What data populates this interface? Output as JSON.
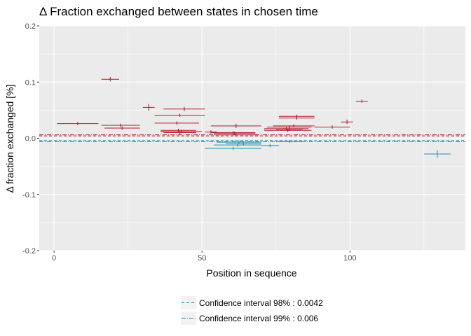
{
  "chart_data": {
    "type": "scatter",
    "title": "Δ Fraction exchanged between states in chosen time",
    "xlabel": "Position in sequence",
    "ylabel": "Δ fraction exchanged [%]",
    "xlim": [
      -5,
      139
    ],
    "ylim": [
      -0.2,
      0.2
    ],
    "x_ticks": [
      0,
      50,
      100
    ],
    "x_tick_labels": [
      "0",
      "50",
      "100"
    ],
    "y_ticks": [
      -0.2,
      -0.1,
      0.0,
      0.1,
      0.2
    ],
    "y_tick_labels": [
      "-0.2",
      "-0.1",
      "0.0",
      "0.1",
      "0.2"
    ],
    "grid": true,
    "colors": {
      "positive": "#b2182b",
      "negative": "#1f8fb4",
      "panel": "#ebebeb",
      "grid": "#ffffff"
    },
    "confidence_intervals": [
      {
        "label": "Confidence interval 98% : 0.0042",
        "value": 0.0042,
        "linetype": "dashed"
      },
      {
        "label": "Confidence interval 99% : 0.006",
        "value": 0.006,
        "linetype": "dotdash"
      }
    ],
    "legend_position": "bottom",
    "points": [
      {
        "start": 1,
        "end": 15,
        "value": 0.026,
        "err": 0.003
      },
      {
        "start": 16,
        "end": 22,
        "value": 0.105,
        "err": 0.004
      },
      {
        "start": 16,
        "end": 29,
        "value": 0.023,
        "err": 0.003
      },
      {
        "start": 17,
        "end": 29,
        "value": 0.018,
        "err": 0.003
      },
      {
        "start": 30,
        "end": 34,
        "value": 0.055,
        "err": 0.006
      },
      {
        "start": 34,
        "end": 51,
        "value": 0.041,
        "err": 0.003
      },
      {
        "start": 37,
        "end": 51,
        "value": 0.052,
        "err": 0.004
      },
      {
        "start": 34,
        "end": 49,
        "value": 0.027,
        "err": 0.003
      },
      {
        "start": 36,
        "end": 48,
        "value": 0.014,
        "err": 0.003
      },
      {
        "start": 37,
        "end": 48,
        "value": 0.01,
        "err": 0.003
      },
      {
        "start": 36,
        "end": 50,
        "value": 0.012,
        "err": 0.003
      },
      {
        "start": 51,
        "end": 55,
        "value": 0.011,
        "err": 0.003
      },
      {
        "start": 53,
        "end": 68,
        "value": 0.01,
        "err": 0.003
      },
      {
        "start": 54,
        "end": 69,
        "value": 0.006,
        "err": 0.003
      },
      {
        "start": 54,
        "end": 68,
        "value": 0.009,
        "err": 0.003
      },
      {
        "start": 53,
        "end": 70,
        "value": 0.022,
        "err": 0.004
      },
      {
        "start": 71,
        "end": 86,
        "value": 0.017,
        "err": 0.003
      },
      {
        "start": 71,
        "end": 87,
        "value": 0.014,
        "err": 0.003
      },
      {
        "start": 72,
        "end": 87,
        "value": 0.02,
        "err": 0.003
      },
      {
        "start": 75,
        "end": 84,
        "value": 0.016,
        "err": 0.003
      },
      {
        "start": 76,
        "end": 88,
        "value": 0.039,
        "err": 0.003
      },
      {
        "start": 76,
        "end": 88,
        "value": 0.036,
        "err": 0.003
      },
      {
        "start": 74,
        "end": 88,
        "value": 0.022,
        "err": 0.003
      },
      {
        "start": 88,
        "end": 100,
        "value": 0.02,
        "err": 0.003
      },
      {
        "start": 97,
        "end": 101,
        "value": 0.029,
        "err": 0.004
      },
      {
        "start": 102,
        "end": 106,
        "value": 0.066,
        "err": 0.003
      },
      {
        "start": 51,
        "end": 70,
        "value": -0.018,
        "err": 0.003
      },
      {
        "start": 54,
        "end": 70,
        "value": -0.012,
        "err": 0.003
      },
      {
        "start": 55,
        "end": 70,
        "value": -0.007,
        "err": 0.003
      },
      {
        "start": 58,
        "end": 70,
        "value": -0.01,
        "err": 0.003
      },
      {
        "start": 70,
        "end": 76,
        "value": -0.013,
        "err": 0.003
      },
      {
        "start": 75,
        "end": 84,
        "value": -0.006,
        "err": 0.002
      },
      {
        "start": 125,
        "end": 134,
        "value": -0.028,
        "err": 0.007
      }
    ]
  }
}
